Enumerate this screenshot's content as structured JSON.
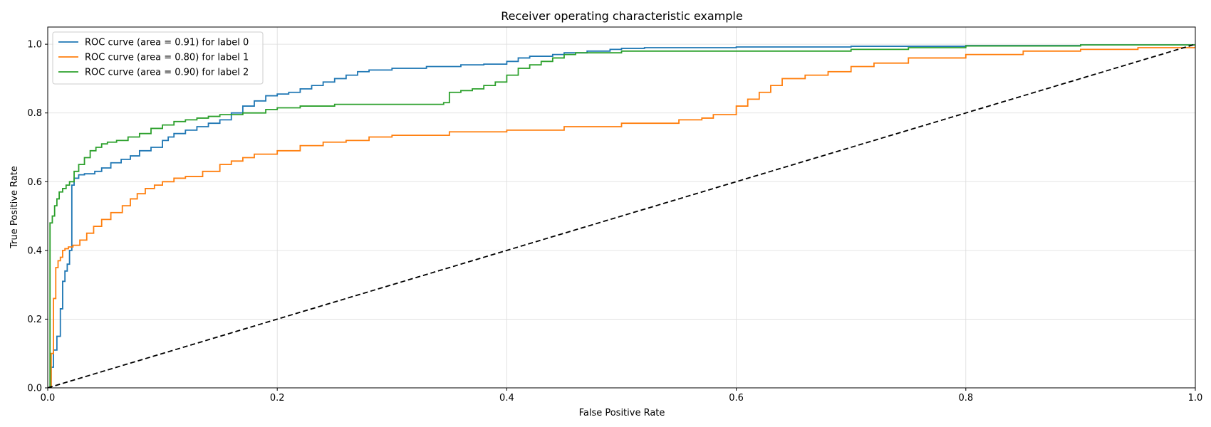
{
  "chart_data": {
    "type": "line",
    "title": "Receiver operating characteristic example",
    "xlabel": "False Positive Rate",
    "ylabel": "True Positive Rate",
    "xlim": [
      0.0,
      1.0
    ],
    "ylim": [
      0.0,
      1.05
    ],
    "x_ticks": [
      "0.0",
      "0.2",
      "0.4",
      "0.6",
      "0.8",
      "1.0"
    ],
    "y_ticks": [
      "0.0",
      "0.2",
      "0.4",
      "0.6",
      "0.8",
      "1.0"
    ],
    "grid": true,
    "legend_position": "upper left",
    "series": [
      {
        "name": "ROC curve (area = 0.91) for label 0",
        "color": "#1f77b4",
        "step": true,
        "x": [
          0.0,
          0.003,
          0.005,
          0.008,
          0.011,
          0.013,
          0.015,
          0.017,
          0.019,
          0.021,
          0.023,
          0.027,
          0.032,
          0.041,
          0.047,
          0.055,
          0.064,
          0.072,
          0.08,
          0.09,
          0.1,
          0.105,
          0.11,
          0.12,
          0.13,
          0.14,
          0.15,
          0.16,
          0.17,
          0.18,
          0.19,
          0.2,
          0.21,
          0.22,
          0.23,
          0.24,
          0.25,
          0.26,
          0.27,
          0.28,
          0.3,
          0.33,
          0.36,
          0.38,
          0.4,
          0.41,
          0.42,
          0.44,
          0.45,
          0.47,
          0.49,
          0.5,
          0.52,
          0.6,
          0.7,
          0.8,
          0.9,
          1.0
        ],
        "y": [
          0.0,
          0.06,
          0.11,
          0.15,
          0.23,
          0.31,
          0.34,
          0.36,
          0.4,
          0.59,
          0.61,
          0.62,
          0.623,
          0.63,
          0.64,
          0.655,
          0.665,
          0.675,
          0.69,
          0.7,
          0.72,
          0.73,
          0.74,
          0.75,
          0.76,
          0.77,
          0.78,
          0.8,
          0.82,
          0.835,
          0.85,
          0.855,
          0.86,
          0.87,
          0.88,
          0.89,
          0.9,
          0.91,
          0.92,
          0.925,
          0.93,
          0.935,
          0.94,
          0.942,
          0.95,
          0.96,
          0.965,
          0.97,
          0.975,
          0.98,
          0.985,
          0.988,
          0.99,
          0.992,
          0.994,
          0.996,
          0.998,
          1.0
        ]
      },
      {
        "name": "ROC curve (area = 0.80) for label 1",
        "color": "#ff7f0e",
        "step": true,
        "x": [
          0.0,
          0.003,
          0.005,
          0.007,
          0.009,
          0.011,
          0.013,
          0.015,
          0.018,
          0.022,
          0.028,
          0.034,
          0.04,
          0.047,
          0.055,
          0.065,
          0.072,
          0.078,
          0.085,
          0.093,
          0.1,
          0.11,
          0.12,
          0.135,
          0.15,
          0.16,
          0.17,
          0.18,
          0.2,
          0.22,
          0.24,
          0.26,
          0.28,
          0.3,
          0.35,
          0.4,
          0.45,
          0.5,
          0.55,
          0.57,
          0.58,
          0.6,
          0.61,
          0.62,
          0.63,
          0.64,
          0.66,
          0.68,
          0.7,
          0.72,
          0.75,
          0.8,
          0.85,
          0.9,
          0.95,
          1.0
        ],
        "y": [
          0.0,
          0.1,
          0.26,
          0.35,
          0.37,
          0.38,
          0.4,
          0.405,
          0.41,
          0.415,
          0.43,
          0.45,
          0.47,
          0.49,
          0.51,
          0.53,
          0.55,
          0.565,
          0.58,
          0.59,
          0.6,
          0.61,
          0.615,
          0.63,
          0.65,
          0.66,
          0.67,
          0.68,
          0.69,
          0.705,
          0.715,
          0.72,
          0.73,
          0.735,
          0.745,
          0.75,
          0.76,
          0.77,
          0.78,
          0.785,
          0.795,
          0.82,
          0.84,
          0.86,
          0.88,
          0.9,
          0.91,
          0.92,
          0.935,
          0.945,
          0.96,
          0.97,
          0.98,
          0.985,
          0.99,
          1.0
        ]
      },
      {
        "name": "ROC curve (area = 0.90) for label 2",
        "color": "#2ca02c",
        "step": true,
        "x": [
          0.0,
          0.002,
          0.004,
          0.006,
          0.008,
          0.01,
          0.013,
          0.016,
          0.019,
          0.023,
          0.027,
          0.032,
          0.037,
          0.042,
          0.047,
          0.052,
          0.06,
          0.07,
          0.08,
          0.09,
          0.1,
          0.11,
          0.12,
          0.13,
          0.14,
          0.15,
          0.17,
          0.19,
          0.2,
          0.22,
          0.25,
          0.3,
          0.345,
          0.35,
          0.36,
          0.37,
          0.38,
          0.39,
          0.4,
          0.41,
          0.42,
          0.43,
          0.44,
          0.45,
          0.46,
          0.5,
          0.6,
          0.7,
          0.75,
          0.8,
          0.9,
          1.0
        ],
        "y": [
          0.0,
          0.48,
          0.5,
          0.53,
          0.55,
          0.57,
          0.58,
          0.59,
          0.6,
          0.63,
          0.65,
          0.67,
          0.69,
          0.7,
          0.71,
          0.715,
          0.72,
          0.73,
          0.74,
          0.755,
          0.765,
          0.775,
          0.78,
          0.785,
          0.79,
          0.795,
          0.8,
          0.81,
          0.815,
          0.82,
          0.825,
          0.825,
          0.83,
          0.86,
          0.865,
          0.87,
          0.88,
          0.89,
          0.91,
          0.93,
          0.94,
          0.95,
          0.96,
          0.97,
          0.975,
          0.98,
          0.98,
          0.985,
          0.99,
          0.995,
          0.998,
          1.0
        ]
      },
      {
        "color": "#000000",
        "dashed": true,
        "step": false,
        "x": [
          0.0,
          1.0
        ],
        "y": [
          0.0,
          1.0
        ]
      }
    ]
  }
}
